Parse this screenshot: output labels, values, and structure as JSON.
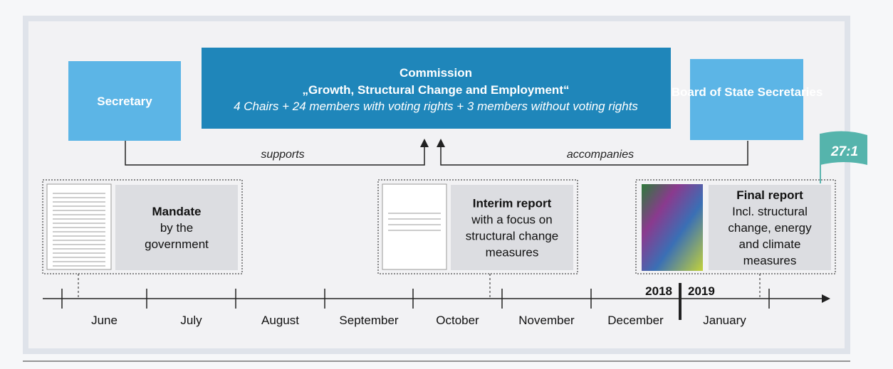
{
  "commission": {
    "title": "Commission",
    "name": "„Growth, Structural Change and Employment“",
    "members": "4 Chairs + 24 members with voting rights + 3 members without voting rights"
  },
  "secretary": {
    "label": "Secretary",
    "relation": "supports"
  },
  "board": {
    "label": "Board of State Secretaries",
    "relation": "accompanies"
  },
  "flag": "27:1",
  "reports": [
    {
      "title": "Mandate",
      "text": "by the government"
    },
    {
      "title": "Interim report",
      "text": "with a focus on structural change measures"
    },
    {
      "title": "Final report",
      "text": "Incl. structural change, energy and climate measures"
    }
  ],
  "timeline": {
    "years": [
      "2018",
      "2019"
    ],
    "months": [
      "June",
      "July",
      "August",
      "September",
      "October",
      "November",
      "December",
      "January"
    ]
  }
}
